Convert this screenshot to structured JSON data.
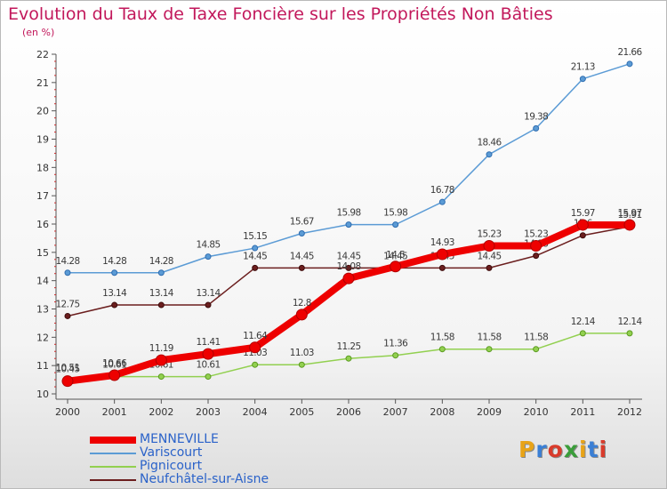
{
  "header": {
    "title": "Evolution du Taux de Taxe Foncière sur les Propriétés Non Bâties",
    "subtitle": "(en %)"
  },
  "logo": {
    "text": "Proxiti",
    "colors": [
      "#e8a317",
      "#3a7fd5",
      "#d93b2b",
      "#3a9d3a",
      "#e8a317",
      "#3a7fd5",
      "#d93b2b"
    ]
  },
  "chart_data": {
    "type": "line",
    "title": "Evolution du Taux de Taxe Foncière sur les Propriétés Non Bâties",
    "ylabel": "(en %)",
    "xlabel": "",
    "ylim": [
      10,
      22
    ],
    "yticks": [
      10,
      11,
      12,
      13,
      14,
      15,
      16,
      17,
      18,
      19,
      20,
      21,
      22
    ],
    "categories": [
      "2000",
      "2001",
      "2002",
      "2003",
      "2004",
      "2005",
      "2006",
      "2007",
      "2008",
      "2009",
      "2010",
      "2011",
      "2012"
    ],
    "grid": false,
    "legend_position": "bottom-left",
    "series": [
      {
        "name": "Neufchâtel-sur-Aisne",
        "color": "#6b1e1e",
        "values": [
          12.75,
          13.14,
          13.14,
          13.14,
          14.45,
          14.45,
          14.45,
          14.45,
          14.45,
          14.45,
          14.88,
          15.6,
          15.91
        ],
        "labels": [
          "12.75",
          "13.14",
          "13.14",
          "13.14",
          "14.45",
          "14.45",
          "14.45",
          "14.45",
          "14.45",
          "14.45",
          "14.88",
          "15.6",
          "15.91"
        ]
      },
      {
        "name": "Pignicourt",
        "color": "#92d050",
        "values": [
          10.51,
          10.61,
          10.61,
          10.61,
          11.03,
          11.03,
          11.25,
          11.36,
          11.58,
          11.58,
          11.58,
          12.14,
          12.14
        ],
        "labels": [
          "10.51",
          "10.61",
          "10.61",
          "10.61",
          "11.03",
          "11.03",
          "11.25",
          "11.36",
          "11.58",
          "11.58",
          "11.58",
          "12.14",
          "12.14"
        ]
      },
      {
        "name": "Variscourt",
        "color": "#5b9bd5",
        "values": [
          14.28,
          14.28,
          14.28,
          14.85,
          15.15,
          15.67,
          15.98,
          15.98,
          16.78,
          18.46,
          19.38,
          21.13,
          21.66
        ],
        "labels": [
          "14.28",
          "14.28",
          "14.28",
          "14.85",
          "15.15",
          "15.67",
          "15.98",
          "15.98",
          "16.78",
          "18.46",
          "19.38",
          "21.13",
          "21.66"
        ]
      },
      {
        "name": "MENNEVILLE",
        "color": "#ee0000",
        "values": [
          10.45,
          10.66,
          11.19,
          11.41,
          11.64,
          12.8,
          14.08,
          14.5,
          14.93,
          15.23,
          15.23,
          15.97,
          15.97
        ],
        "labels": [
          "10.45",
          "10.66",
          "11.19",
          "11.41",
          "11.64",
          "12.8",
          "14.08",
          "14.5",
          "14.93",
          "15.23",
          "15.23",
          "15.97",
          "15.97"
        ]
      }
    ]
  }
}
